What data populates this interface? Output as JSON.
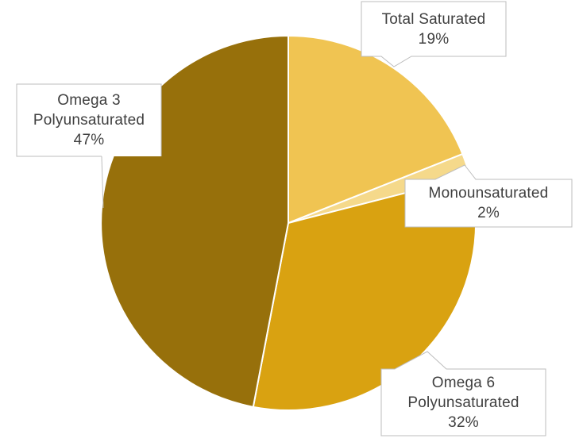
{
  "chart_data": {
    "type": "pie",
    "title": "",
    "unit": "%",
    "start_angle_deg": 0,
    "direction": "clockwise",
    "legend": "callout-labels",
    "slices": [
      {
        "label": "Total Saturated",
        "value": 19,
        "color": "#F0C452"
      },
      {
        "label": "Monounsaturated",
        "value": 2,
        "color": "#F5D98B"
      },
      {
        "label": "Omega 6 Polyunsaturated",
        "value": 32,
        "color": "#D9A211"
      },
      {
        "label": "Omega 3 Polyunsaturated",
        "value": 47,
        "color": "#97700B"
      }
    ]
  },
  "callouts": [
    {
      "lines": [
        "Total Saturated",
        "19%"
      ]
    },
    {
      "lines": [
        "Monounsaturated",
        "2%"
      ]
    },
    {
      "lines": [
        "Omega 6",
        "Polyunsaturated",
        "32%"
      ]
    },
    {
      "lines": [
        "Omega 3",
        "Polyunsaturated",
        "47%"
      ]
    }
  ],
  "style": {
    "background": "#FFFFFF",
    "slice_gap_color": "#FFFFFF",
    "label_fill": "#FFFFFF",
    "label_border_color": "#BDBDBD",
    "label_text_color": "#3F3F3F"
  }
}
